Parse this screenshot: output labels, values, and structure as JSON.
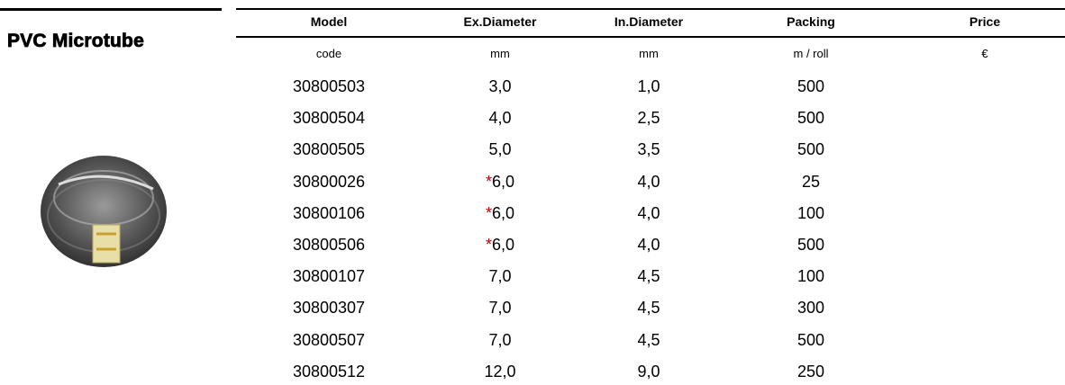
{
  "title": "PVC Microtube",
  "table": {
    "headers": [
      "Model",
      "Ex.Diameter",
      "In.Diameter",
      "Packing",
      "Price"
    ],
    "units": [
      "code",
      "mm",
      "mm",
      "m / roll",
      "€"
    ],
    "rows": [
      [
        "30800503",
        "3,0",
        "1,0",
        "500"
      ],
      [
        "30800504",
        "4,0",
        "2,5",
        "500"
      ],
      [
        "30800505",
        "5,0",
        "3,5",
        "500"
      ],
      [
        "30800026",
        "*6,0",
        "4,0",
        "25"
      ],
      [
        "30800106",
        "*6,0",
        "4,0",
        "100"
      ],
      [
        "30800506",
        "*6,0",
        "4,0",
        "500"
      ],
      [
        "30800107",
        "7,0",
        "4,5",
        "100"
      ],
      [
        "30800307",
        "7,0",
        "4,5",
        "300"
      ],
      [
        "30800507",
        "7,0",
        "4,5",
        "500"
      ],
      [
        "30800512",
        "12,0",
        "9,0",
        "250"
      ]
    ]
  }
}
